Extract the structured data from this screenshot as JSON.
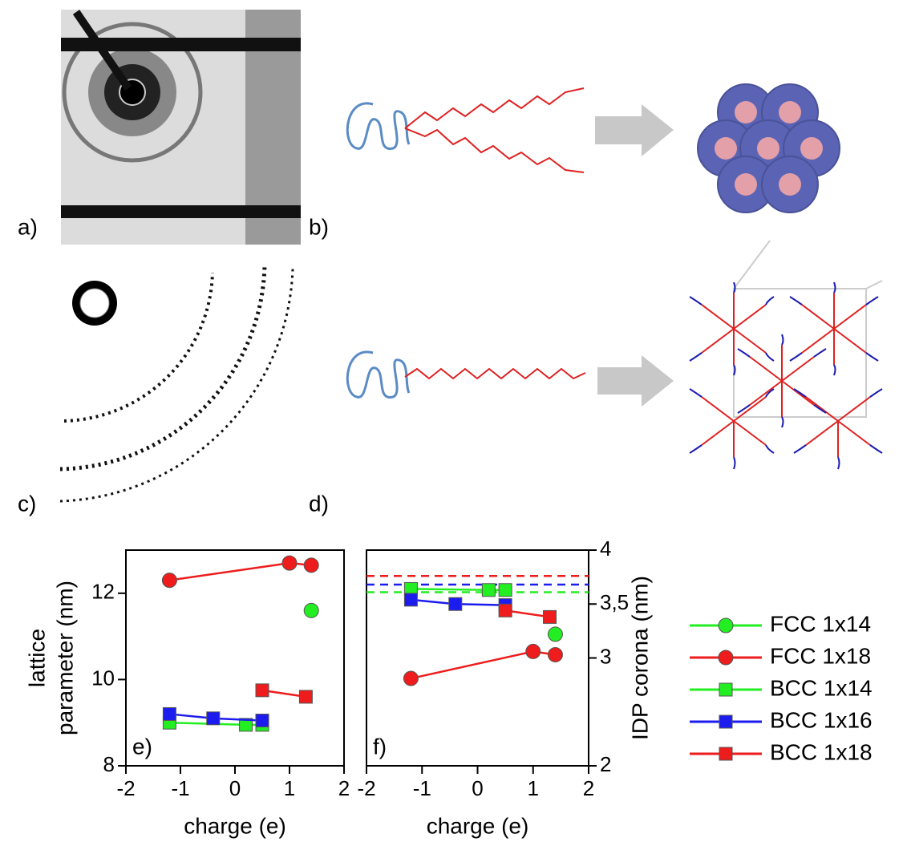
{
  "panels": {
    "a": "a)",
    "b": "b)",
    "c": "c)",
    "d": "d)"
  },
  "chart_data": [
    {
      "type": "line",
      "label": "e)",
      "xlabel": "charge (e)",
      "ylabel": [
        "lattice",
        "parameter (nm)"
      ],
      "xlim": [
        -2,
        2
      ],
      "xticks": [
        -2,
        -1,
        0,
        1,
        2
      ],
      "ylim": [
        8,
        13
      ],
      "yticks": [
        8,
        10,
        12
      ],
      "series": [
        {
          "color": "#22ee22",
          "marker": "circle",
          "x": [
            1.4
          ],
          "values": [
            11.6
          ]
        },
        {
          "color": "#ee1c1c",
          "marker": "circle",
          "x": [
            -1.2,
            1.0,
            1.4
          ],
          "values": [
            12.3,
            12.7,
            12.65
          ]
        },
        {
          "color": "#22ee22",
          "marker": "square",
          "x": [
            -1.2,
            0.2,
            0.5
          ],
          "values": [
            9.0,
            8.95,
            8.95
          ]
        },
        {
          "color": "#1c1cee",
          "marker": "square",
          "x": [
            -1.2,
            -0.4,
            0.5
          ],
          "values": [
            9.2,
            9.1,
            9.05
          ]
        },
        {
          "color": "#ee1c1c",
          "marker": "square",
          "x": [
            0.5,
            1.3
          ],
          "values": [
            9.75,
            9.6
          ]
        }
      ]
    },
    {
      "type": "line",
      "label": "f)",
      "xlabel": "charge (e)",
      "y2label": "IDP corona (nm)",
      "xlim": [
        -2,
        2
      ],
      "xticks": [
        -2,
        -1,
        0,
        1,
        2
      ],
      "y2lim": [
        2,
        4
      ],
      "y2ticks": [
        2,
        3,
        {
          "value": 3.5,
          "label": "3,5"
        },
        4
      ],
      "reference_lines": [
        {
          "value": 3.76,
          "color": "#ee1c1c"
        },
        {
          "value": 3.68,
          "color": "#1c1cee"
        },
        {
          "value": 3.61,
          "color": "#22ee22"
        }
      ],
      "series": [
        {
          "name": "FCC 1x14",
          "color": "#22ee22",
          "marker": "circle",
          "axis": "y2",
          "x": [
            1.4
          ],
          "values": [
            3.22
          ]
        },
        {
          "name": "FCC 1x18",
          "color": "#ee1c1c",
          "marker": "circle",
          "axis": "y2",
          "x": [
            -1.2,
            1.0,
            1.4
          ],
          "values": [
            2.81,
            3.06,
            3.03
          ]
        },
        {
          "name": "BCC 1x14",
          "color": "#22ee22",
          "marker": "square",
          "axis": "y2",
          "x": [
            -1.2,
            0.2,
            0.5
          ],
          "values": [
            3.64,
            3.63,
            3.63
          ]
        },
        {
          "name": "BCC 1x16",
          "color": "#1c1cee",
          "marker": "square",
          "axis": "y2",
          "x": [
            -1.2,
            -0.4,
            0.5
          ],
          "values": [
            3.54,
            3.5,
            3.49
          ]
        },
        {
          "name": "BCC 1x18",
          "color": "#ee1c1c",
          "marker": "square",
          "axis": "y2",
          "x": [
            0.5,
            1.3
          ],
          "values": [
            3.44,
            3.38
          ]
        }
      ]
    }
  ]
}
